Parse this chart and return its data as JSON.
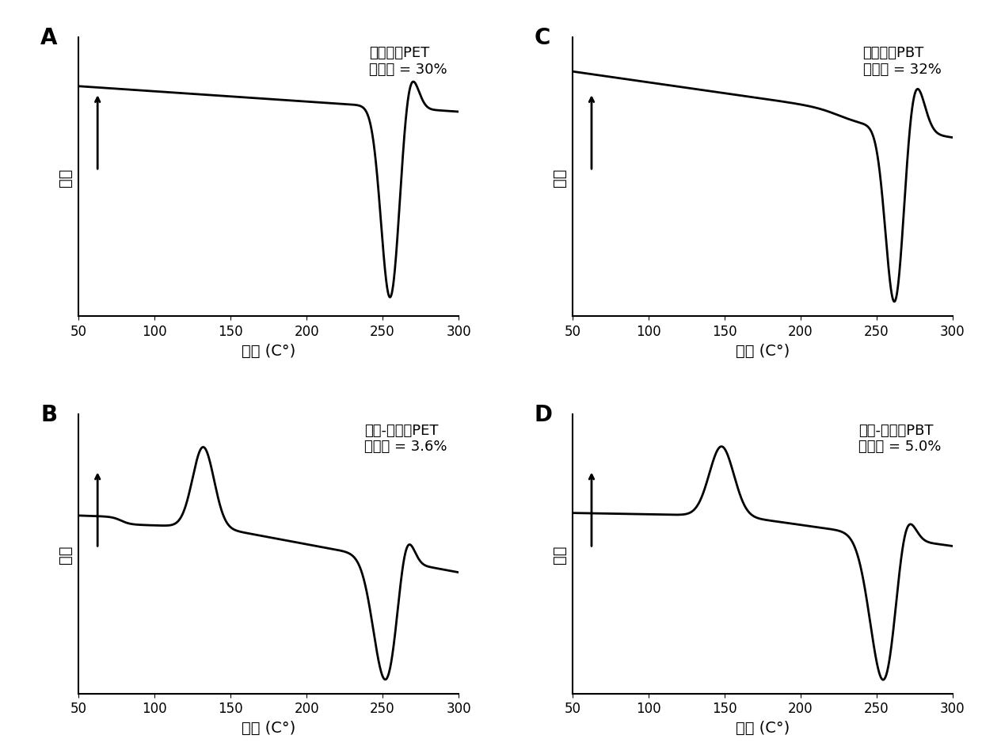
{
  "panels": [
    {
      "label": "A",
      "title_line1": "塑料原料PET",
      "title_line2": "结晶度 = 30%",
      "type": "A_PET_raw"
    },
    {
      "label": "B",
      "title_line1": "熔融-淬火后PET",
      "title_line2": "结晶度 = 3.6%",
      "type": "B_PET_quenched"
    },
    {
      "label": "C",
      "title_line1": "塑料原料PBT",
      "title_line2": "结晶度 = 32%",
      "type": "C_PBT_raw"
    },
    {
      "label": "D",
      "title_line1": "熔融-淬火后PBT",
      "title_line2": "结晶度 = 5.0%",
      "type": "D_PBT_quenched"
    }
  ],
  "xlabel": "温度 (C°)",
  "ylabel": "放热",
  "xlim": [
    50,
    300
  ],
  "xticks": [
    50,
    100,
    150,
    200,
    250,
    300
  ],
  "line_color": "#000000",
  "line_width": 2.0,
  "bg_color": "#ffffff"
}
